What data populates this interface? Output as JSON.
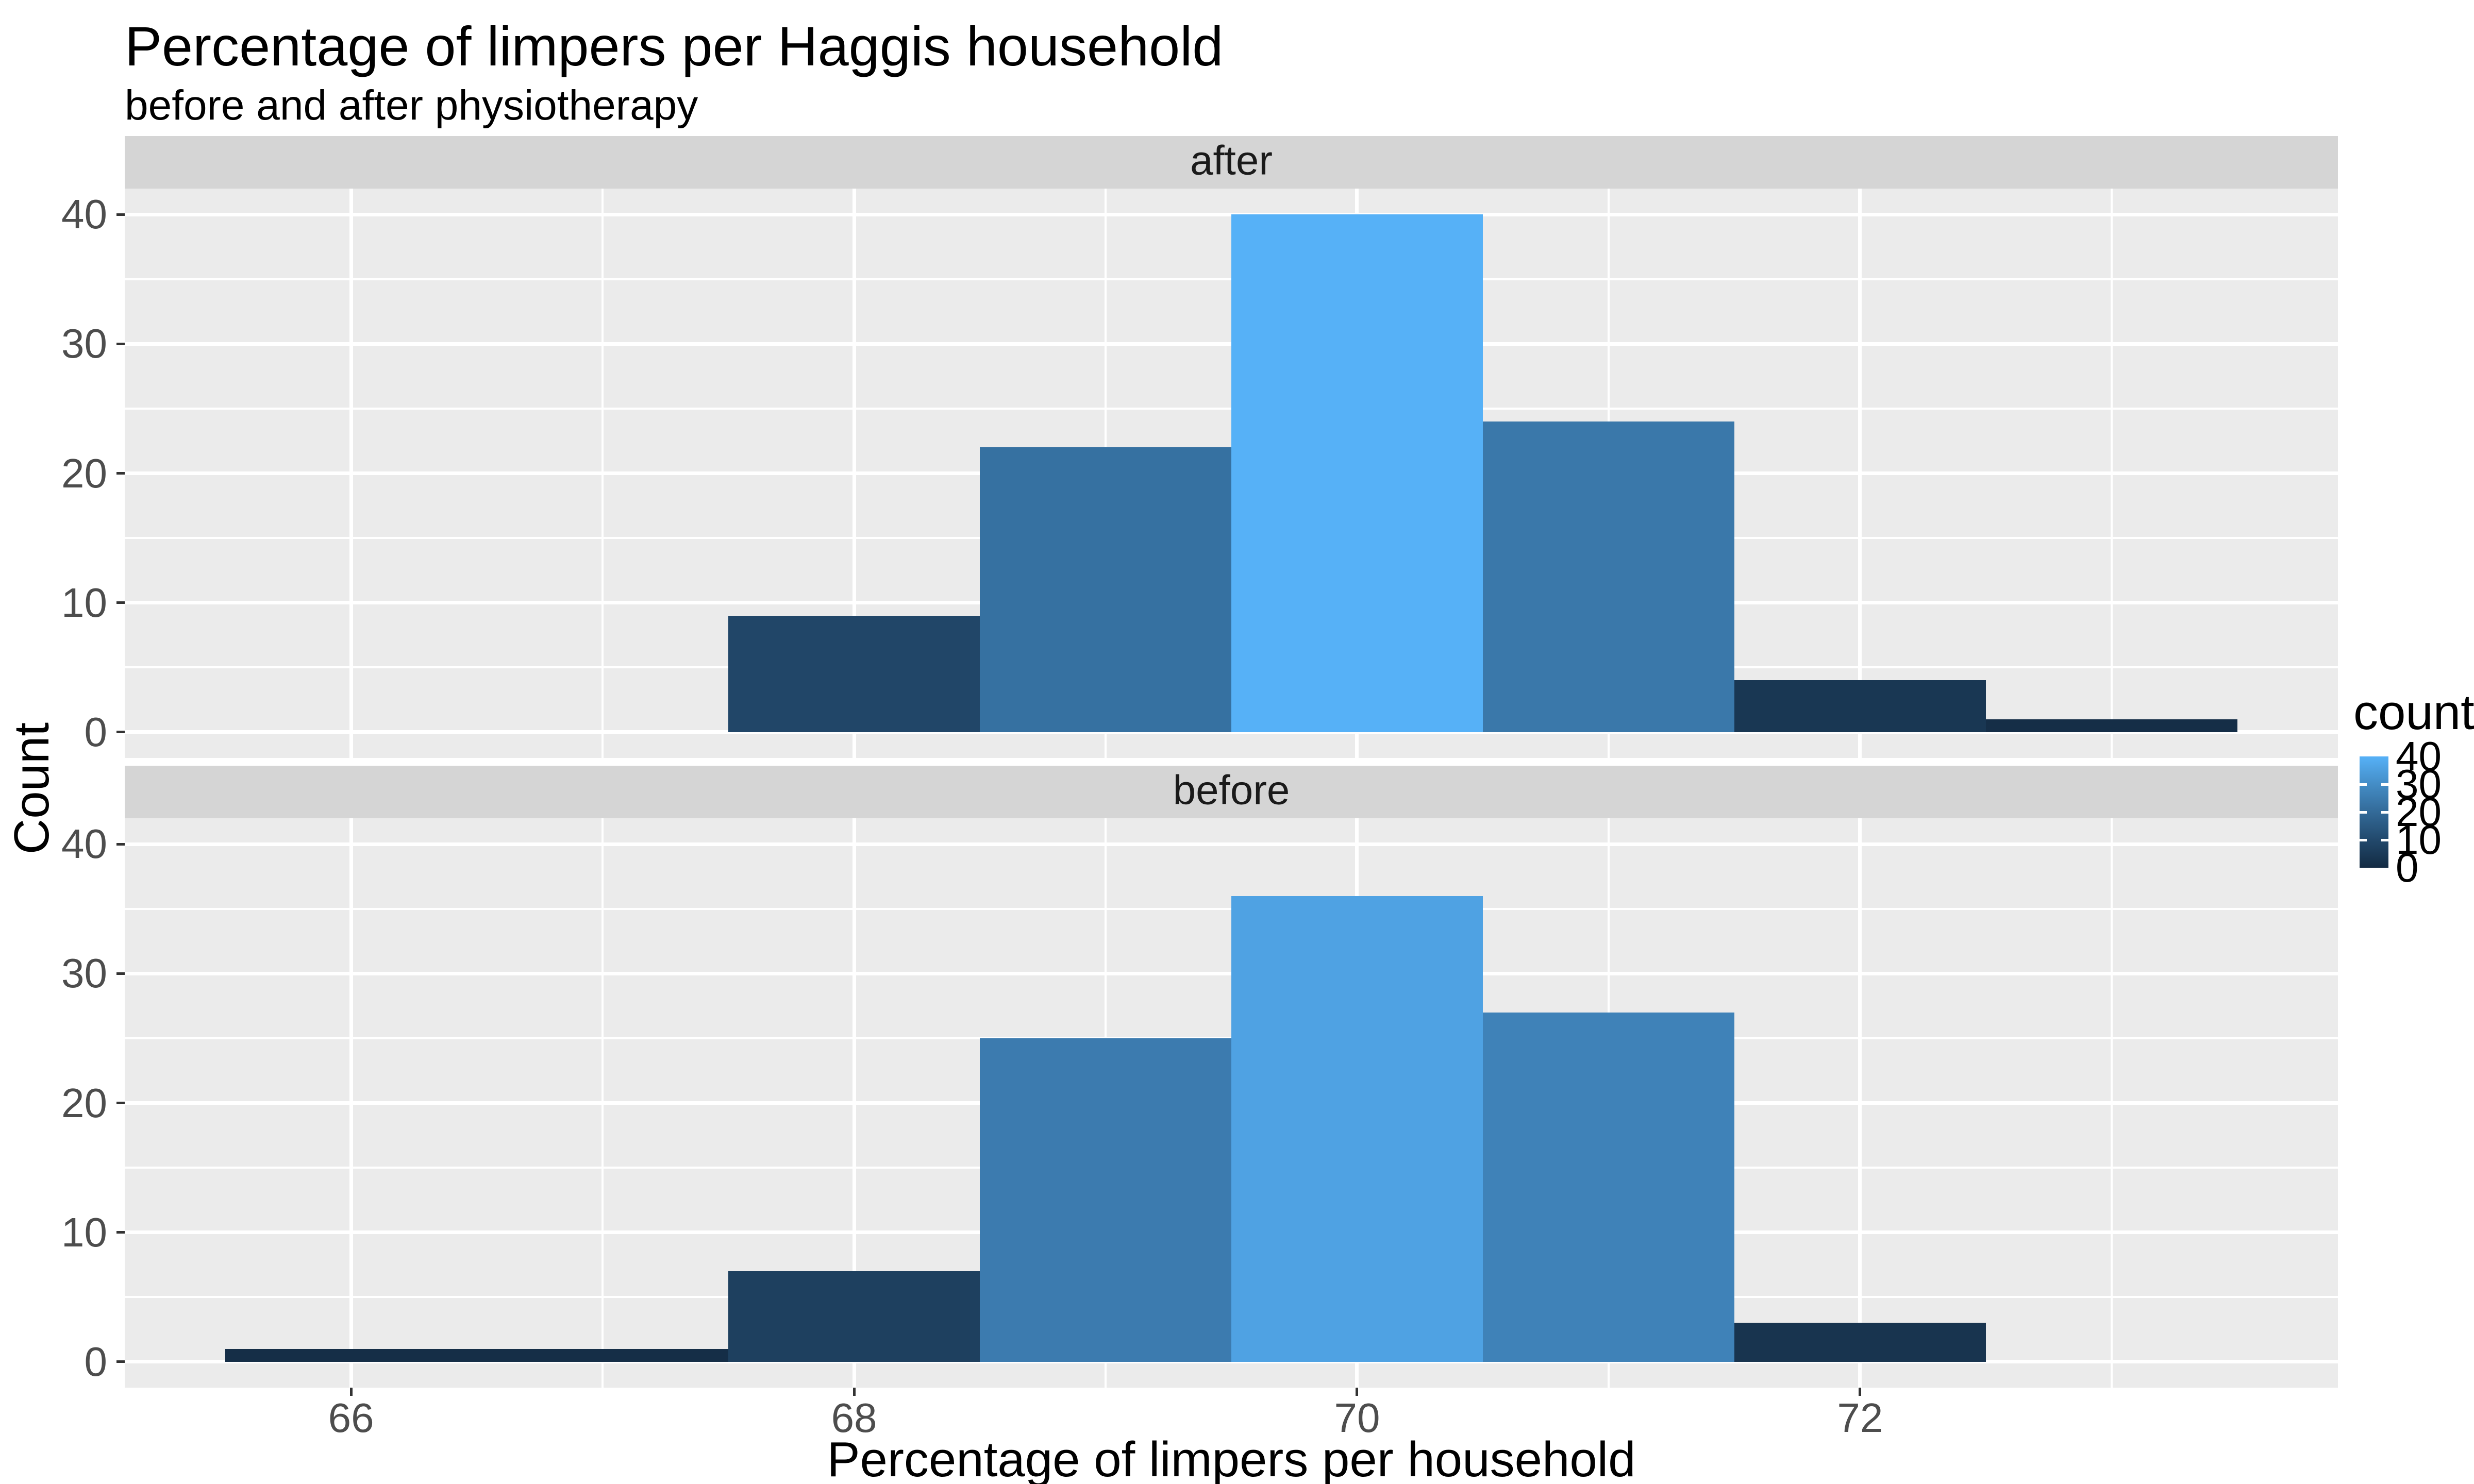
{
  "title": "Percentage of limpers per Haggis household",
  "subtitle": "before and after physiotherapy",
  "x_axis": {
    "title": "Percentage of limpers per household",
    "ticks": [
      66,
      68,
      70,
      72
    ]
  },
  "y_axis": {
    "title": "Count",
    "ticks": [
      0,
      10,
      20,
      30,
      40
    ]
  },
  "legend": {
    "title": "count",
    "labels": [
      40,
      30,
      20,
      10,
      0
    ],
    "tick_values": [
      30,
      20,
      10
    ],
    "gradient_stops": [
      {
        "value": 40,
        "color": "#56B1F7"
      },
      {
        "value": 30,
        "color": "#448DC6"
      },
      {
        "value": 20,
        "color": "#336A98"
      },
      {
        "value": 10,
        "color": "#22496C"
      },
      {
        "value": 0,
        "color": "#132B43"
      }
    ]
  },
  "chart_data": {
    "type": "bar",
    "subtype": "faceted-histogram",
    "x_domain": [
      65.1,
      73.9
    ],
    "y_domain": [
      -2,
      42
    ],
    "x_major_gridlines": [
      66,
      68,
      70,
      72
    ],
    "x_minor_gridlines": [
      67,
      69,
      71,
      73
    ],
    "y_major_gridlines": [
      0,
      10,
      20,
      30,
      40
    ],
    "y_minor_gridlines": [
      5,
      15,
      25,
      35
    ],
    "bin_width": 1,
    "fill_scale": {
      "low": "#132B43",
      "high": "#56B1F7",
      "limits": [
        0,
        40
      ]
    },
    "facets": [
      {
        "label": "after",
        "bins": [
          {
            "x0": 67.5,
            "x1": 68.5,
            "count": 9,
            "fill": "#214668"
          },
          {
            "x0": 68.5,
            "x1": 69.5,
            "count": 22,
            "fill": "#3671A1"
          },
          {
            "x0": 69.5,
            "x1": 70.5,
            "count": 40,
            "fill": "#56B1F7"
          },
          {
            "x0": 70.5,
            "x1": 71.5,
            "count": 24,
            "fill": "#3A78AA"
          },
          {
            "x0": 71.5,
            "x1": 72.5,
            "count": 4,
            "fill": "#193753"
          },
          {
            "x0": 72.5,
            "x1": 73.5,
            "count": 1,
            "fill": "#152E47"
          }
        ]
      },
      {
        "label": "before",
        "bins": [
          {
            "x0": 65.5,
            "x1": 66.5,
            "count": 1,
            "fill": "#152E47"
          },
          {
            "x0": 66.5,
            "x1": 67.5,
            "count": 1,
            "fill": "#152E47"
          },
          {
            "x0": 67.5,
            "x1": 68.5,
            "count": 7,
            "fill": "#1E405F"
          },
          {
            "x0": 68.5,
            "x1": 69.5,
            "count": 25,
            "fill": "#3C7BAF"
          },
          {
            "x0": 69.5,
            "x1": 70.5,
            "count": 36,
            "fill": "#4FA2E3"
          },
          {
            "x0": 70.5,
            "x1": 71.5,
            "count": 27,
            "fill": "#3F82B8"
          },
          {
            "x0": 71.5,
            "x1": 72.5,
            "count": 3,
            "fill": "#18344F"
          }
        ]
      }
    ]
  },
  "theme": {
    "panel_background": "#ebebeb",
    "strip_background": "#d5d5d5",
    "gridline_color": "#ffffff",
    "tick_color": "#333333",
    "tick_label_color": "#4d4d4d"
  }
}
